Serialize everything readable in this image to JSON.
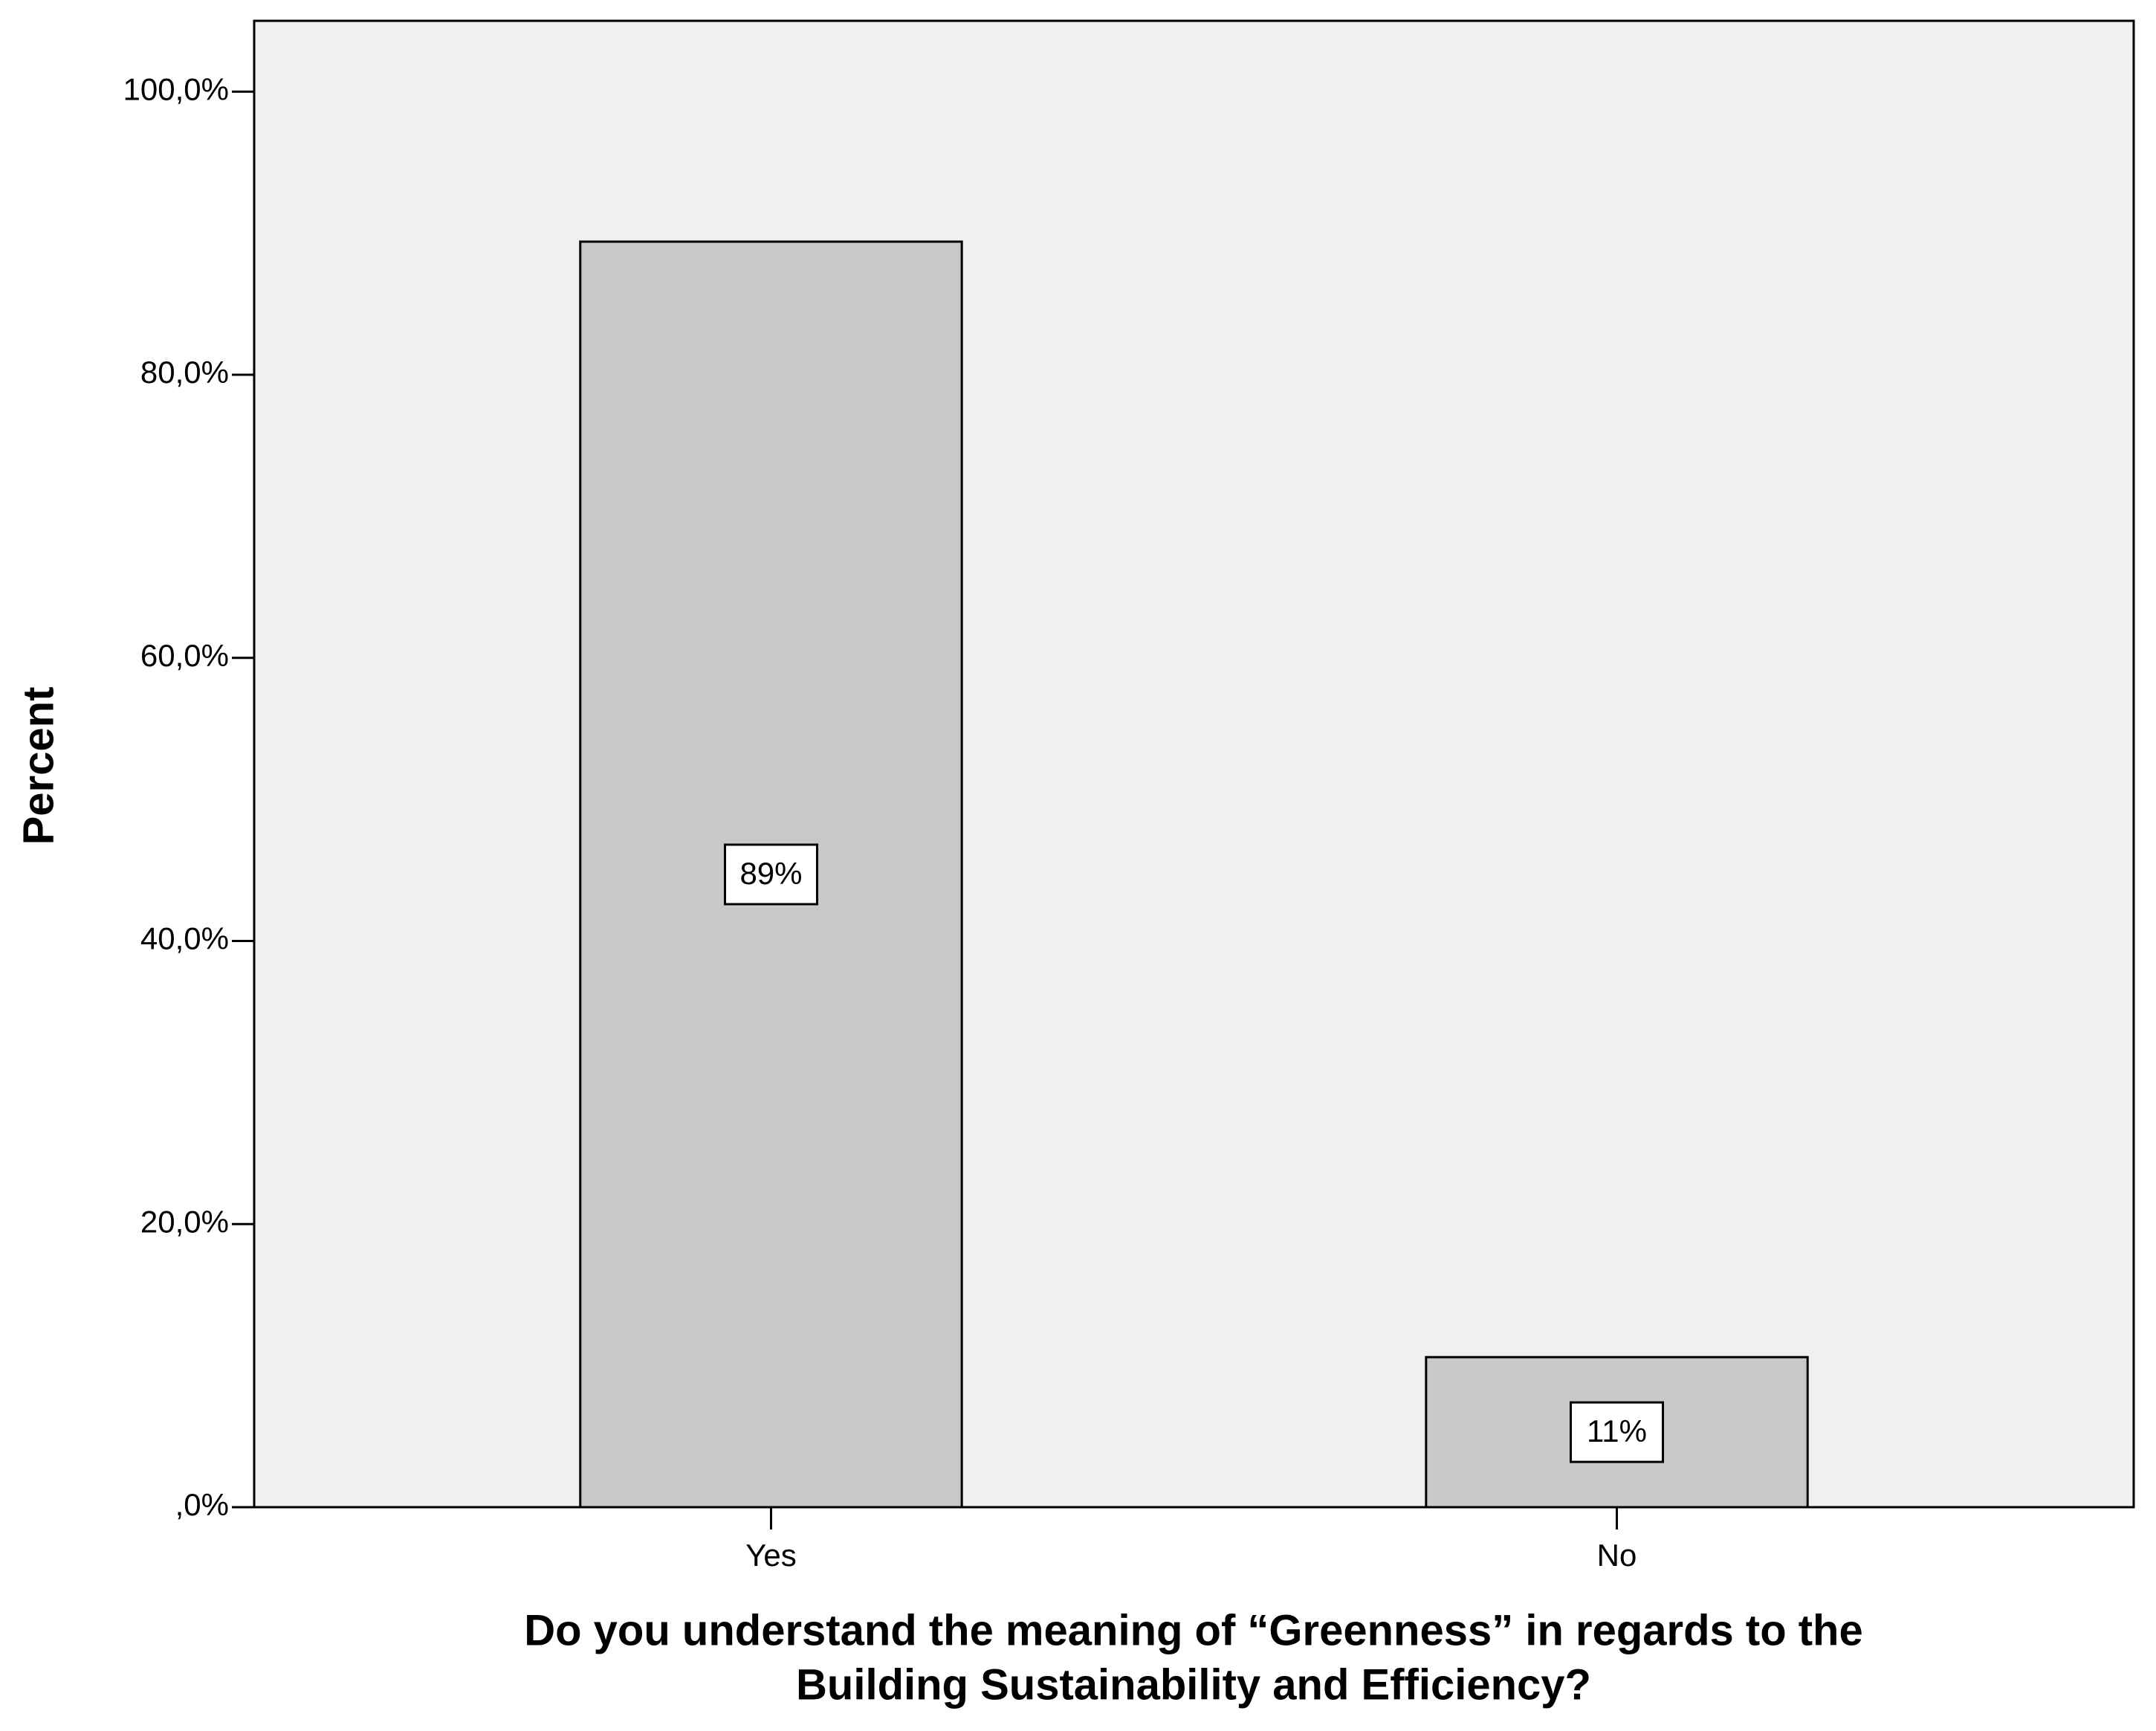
{
  "chart_data": {
    "type": "bar",
    "categories": [
      "Yes",
      "No"
    ],
    "values": [
      89.4,
      10.6
    ],
    "value_labels": [
      "89%",
      "11%"
    ],
    "color": "#c8c8c8",
    "background": "#f0f0f0",
    "ylim": [
      0,
      105
    ],
    "yticks": [
      {
        "value": 0,
        "label": ",0%"
      },
      {
        "value": 20,
        "label": "20,0%"
      },
      {
        "value": 40,
        "label": "40,0%"
      },
      {
        "value": 60,
        "label": "60,0%"
      },
      {
        "value": 80,
        "label": "80,0%"
      },
      {
        "value": 100,
        "label": "100,0%"
      }
    ],
    "y_label": "Percent",
    "x_label": [
      "Do you understand the meaning of “Greenness” in regards to the",
      "Building Sustainability and Efficiency?"
    ],
    "grid": false
  }
}
